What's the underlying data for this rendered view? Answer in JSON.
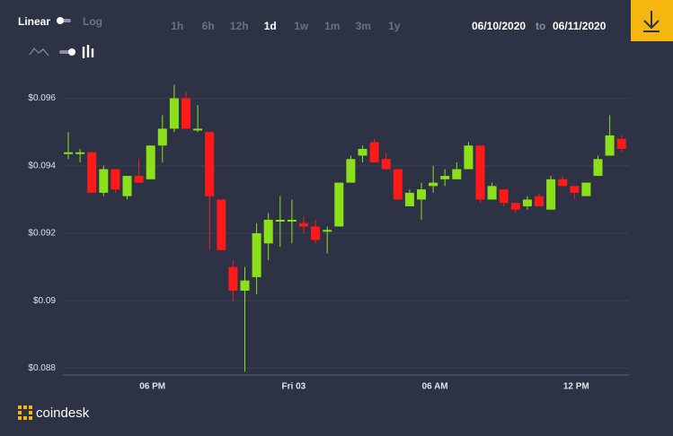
{
  "ui": {
    "scale_options": [
      "Linear",
      "Log"
    ],
    "ranges": [
      "1h",
      "6h",
      "12h",
      "1d",
      "1w",
      "1m",
      "3m",
      "1y"
    ],
    "date_from": "06/10/2020",
    "date_separator": "to",
    "date_to": "06/11/2020",
    "brand": "coindesk"
  },
  "chart_data": {
    "type": "candlestick",
    "categories": [
      null,
      null,
      null,
      null,
      null,
      null,
      null,
      "06 PM",
      null,
      null,
      null,
      null,
      null,
      null,
      null,
      null,
      null,
      null,
      null,
      "Fri 03",
      null,
      null,
      null,
      null,
      null,
      null,
      null,
      null,
      null,
      null,
      null,
      "06 AM",
      null,
      null,
      null,
      null,
      null,
      null,
      null,
      null,
      null,
      null,
      null,
      "12 PM",
      null,
      null,
      null,
      null
    ],
    "series": [
      {
        "name": "open",
        "values": [
          0.0944,
          0.0944,
          0.0944,
          0.0932,
          0.0939,
          0.0931,
          0.0937,
          0.0936,
          0.0946,
          0.0951,
          0.096,
          0.0951,
          0.095,
          0.093,
          0.091,
          0.0903,
          0.0907,
          0.0917,
          0.0924,
          0.0924,
          0.0923,
          0.0922,
          0.0921,
          0.0922,
          0.0935,
          0.0943,
          0.0947,
          0.0942,
          0.0939,
          0.0928,
          0.093,
          0.0934,
          0.0936,
          0.0936,
          0.0939,
          0.0946,
          0.093,
          0.0933,
          0.0929,
          0.0928,
          0.0931,
          0.0927,
          0.0936,
          0.0934,
          0.0931,
          0.0937,
          0.0943,
          0.0948
        ]
      },
      {
        "name": "high",
        "values": [
          0.095,
          0.0945,
          0.0944,
          0.094,
          0.0939,
          0.0937,
          0.0942,
          0.0946,
          0.0955,
          0.0964,
          0.0962,
          0.0958,
          0.095,
          0.093,
          0.0912,
          0.091,
          0.0923,
          0.0926,
          0.0931,
          0.093,
          0.0925,
          0.0924,
          0.0922,
          0.0935,
          0.0943,
          0.0946,
          0.0948,
          0.0944,
          0.0939,
          0.0933,
          0.0935,
          0.094,
          0.0939,
          0.0941,
          0.0947,
          0.0946,
          0.0935,
          0.0933,
          0.0929,
          0.0931,
          0.0932,
          0.0937,
          0.0937,
          0.0934,
          0.0935,
          0.0943,
          0.0955,
          0.0949
        ]
      },
      {
        "name": "low",
        "values": [
          0.0942,
          0.0941,
          0.0932,
          0.0931,
          0.0932,
          0.093,
          0.0935,
          0.0936,
          0.0941,
          0.095,
          0.0951,
          0.095,
          0.0915,
          0.0915,
          0.09,
          0.0879,
          0.0902,
          0.0912,
          0.0916,
          0.0917,
          0.092,
          0.0917,
          0.0914,
          0.0922,
          0.0935,
          0.0941,
          0.0941,
          0.0939,
          0.093,
          0.0928,
          0.0924,
          0.0932,
          0.0934,
          0.0936,
          0.0939,
          0.0929,
          0.093,
          0.0928,
          0.0926,
          0.0927,
          0.0928,
          0.0927,
          0.0934,
          0.093,
          0.0931,
          0.0937,
          0.0943,
          0.0944
        ]
      },
      {
        "name": "close",
        "values": [
          0.0944,
          0.0944,
          0.0932,
          0.0939,
          0.0933,
          0.0937,
          0.0935,
          0.0946,
          0.0951,
          0.096,
          0.0951,
          0.0951,
          0.0931,
          0.0915,
          0.0903,
          0.0906,
          0.092,
          0.0924,
          0.0924,
          0.0924,
          0.0922,
          0.0918,
          0.0921,
          0.0935,
          0.0942,
          0.0945,
          0.0941,
          0.0939,
          0.093,
          0.0932,
          0.0933,
          0.0935,
          0.0937,
          0.0939,
          0.0946,
          0.093,
          0.0934,
          0.0929,
          0.0927,
          0.093,
          0.0928,
          0.0936,
          0.0934,
          0.0932,
          0.0935,
          0.0942,
          0.0949,
          0.0945
        ]
      }
    ],
    "up_color": "#8be01a",
    "down_color": "#ff1a1a",
    "ylim": [
      0.0878,
      0.0966
    ],
    "yticks": [
      {
        "value": 0.088,
        "label": "$0.088"
      },
      {
        "value": 0.09,
        "label": "$0.09"
      },
      {
        "value": 0.092,
        "label": "$0.092"
      },
      {
        "value": 0.094,
        "label": "$0.094"
      },
      {
        "value": 0.096,
        "label": "$0.096"
      }
    ],
    "grid": true
  }
}
